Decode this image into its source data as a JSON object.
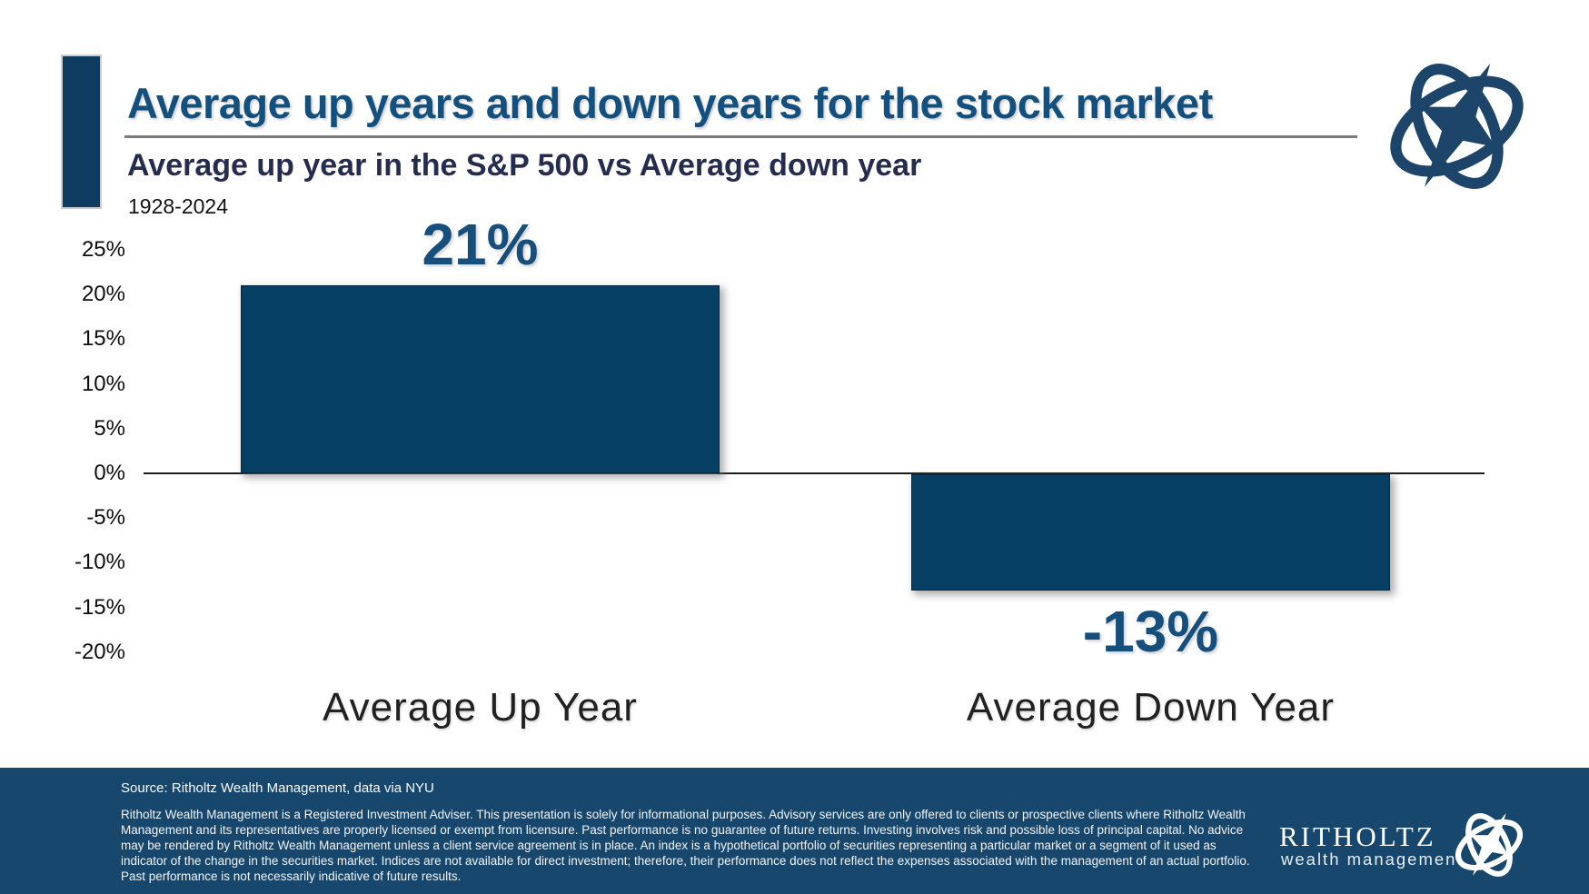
{
  "header": {
    "title": "Average up years and down years for the stock market",
    "subtitle": "Average up year in the S&P 500 vs Average down year",
    "date_range": "1928-2024"
  },
  "chart_data": {
    "type": "bar",
    "title": "Average up year in the S&P 500 vs Average down year",
    "period": "1928-2024",
    "categories": [
      "Average Up Year",
      "Average Down Year"
    ],
    "values": [
      21,
      -13
    ],
    "value_labels": [
      "21%",
      "-13%"
    ],
    "yticks": [
      "25%",
      "20%",
      "15%",
      "10%",
      "5%",
      "0%",
      "-5%",
      "-10%",
      "-15%",
      "-20%"
    ],
    "ylim": [
      -20,
      25
    ],
    "ytick_step": 5,
    "grid": false,
    "legend": false,
    "bar_color": "#063e64",
    "accent_color": "#14507d"
  },
  "footer": {
    "source": "Source: Ritholtz Wealth Management, data via NYU",
    "disclaimer": "Ritholtz Wealth Management is a Registered Investment Adviser. This presentation is solely for informational purposes. Advisory services are only offered to clients or prospective clients where Ritholtz Wealth Management and its representatives are properly licensed or exempt from licensure. Past performance is no guarantee of future returns. Investing involves risk and possible loss of principal capital. No advice may be rendered by Ritholtz Wealth Management unless a client service agreement is in place. An index is a hypothetical portfolio of securities representing a particular market or a segment of it used as indicator of the change in the securities market. Indices are not available for direct investment; therefore, their performance does not reflect the expenses associated with the management of an actual portfolio. Past performance is not necessarily indicative of future results.",
    "brand_name": "RITHOLTZ",
    "brand_tagline": "wealth management"
  }
}
